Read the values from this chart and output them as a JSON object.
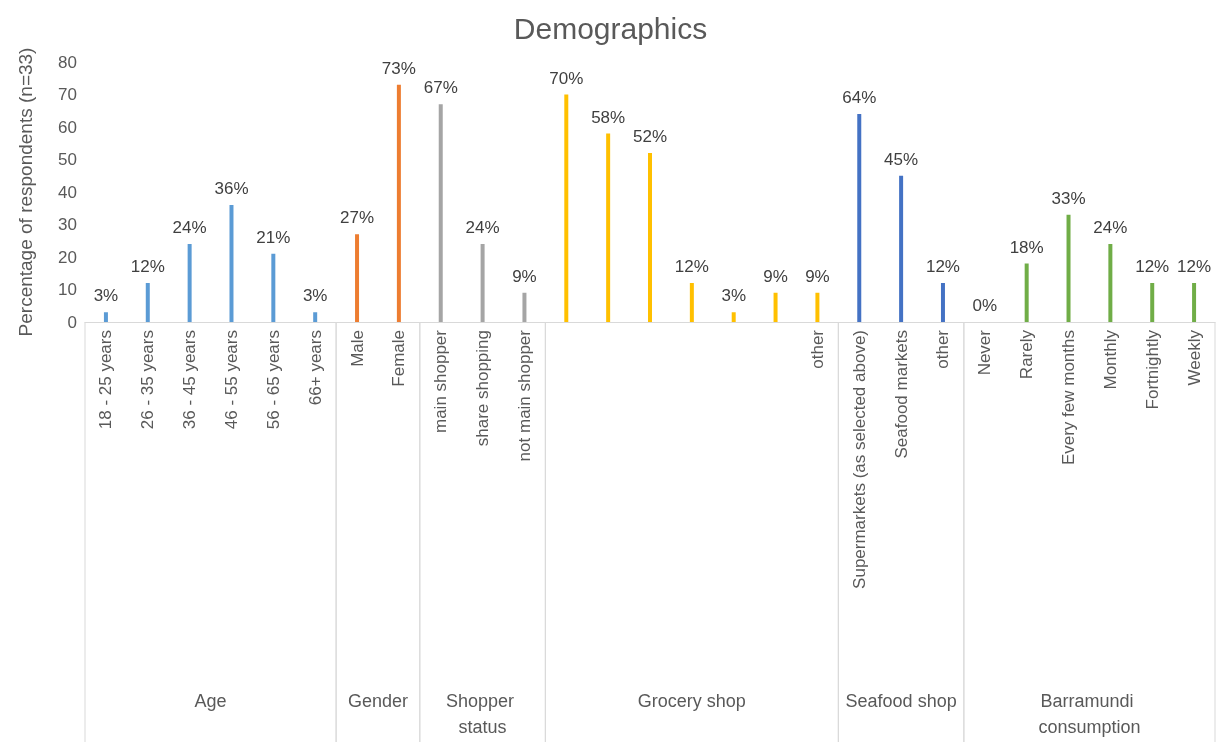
{
  "chart_data": {
    "type": "bar",
    "title": "Demographics",
    "ylabel": "Percentage of respondents (n=33)",
    "categories": [
      "18 - 25 years",
      "26 - 35 years",
      "36 - 45 years",
      "46 - 55 years",
      "56 - 65 years",
      "66+ years",
      "Male",
      "Female",
      "main shopper",
      "share shopping",
      "not main shopper",
      null,
      null,
      null,
      null,
      null,
      null,
      "other",
      "Supermarkets (as selected above)",
      "Seafood markets",
      "other",
      "Never",
      "Rarely",
      "Every few months",
      "Monthly",
      "Fortnightly",
      "Weekly"
    ],
    "series": [
      {
        "color": "#5b9bd5",
        "values": [
          3,
          12,
          24,
          36,
          21,
          3,
          null,
          null,
          null,
          null,
          null,
          null,
          null,
          null,
          null,
          null,
          null,
          null,
          null,
          null,
          null,
          null,
          null,
          null,
          null,
          null,
          null
        ],
        "value_labels": [
          "3%",
          "12%",
          "24%",
          "36%",
          "21%",
          "3%",
          null,
          null,
          null,
          null,
          null,
          null,
          null,
          null,
          null,
          null,
          null,
          null,
          null,
          null,
          null,
          null,
          null,
          null,
          null,
          null,
          null
        ]
      },
      {
        "color": "#ed7d31",
        "values": [
          null,
          null,
          null,
          null,
          null,
          null,
          27,
          73,
          null,
          null,
          null,
          null,
          null,
          null,
          null,
          null,
          null,
          null,
          null,
          null,
          null,
          null,
          null,
          null,
          null,
          null,
          null
        ],
        "value_labels": [
          null,
          null,
          null,
          null,
          null,
          null,
          "27%",
          "73%",
          null,
          null,
          null,
          null,
          null,
          null,
          null,
          null,
          null,
          null,
          null,
          null,
          null,
          null,
          null,
          null,
          null,
          null,
          null
        ]
      },
      {
        "color": "#a5a5a5",
        "values": [
          null,
          null,
          null,
          null,
          null,
          null,
          null,
          null,
          67,
          24,
          9,
          null,
          null,
          null,
          null,
          null,
          null,
          null,
          null,
          null,
          null,
          null,
          null,
          null,
          null,
          null,
          null
        ],
        "value_labels": [
          null,
          null,
          null,
          null,
          null,
          null,
          null,
          null,
          "67%",
          "24%",
          "9%",
          null,
          null,
          null,
          null,
          null,
          null,
          null,
          null,
          null,
          null,
          null,
          null,
          null,
          null,
          null,
          null
        ]
      },
      {
        "color": "#ffc000",
        "values": [
          null,
          null,
          null,
          null,
          null,
          null,
          null,
          null,
          null,
          null,
          null,
          70,
          58,
          52,
          12,
          3,
          9,
          9,
          null,
          null,
          null,
          null,
          null,
          null,
          null,
          null,
          null
        ],
        "value_labels": [
          null,
          null,
          null,
          null,
          null,
          null,
          null,
          null,
          null,
          null,
          null,
          "70%",
          "58%",
          "52%",
          "12%",
          "3%",
          "9%",
          "9%",
          null,
          null,
          null,
          null,
          null,
          null,
          null,
          null,
          null
        ]
      },
      {
        "color": "#4472c4",
        "values": [
          null,
          null,
          null,
          null,
          null,
          null,
          null,
          null,
          null,
          null,
          null,
          null,
          null,
          null,
          null,
          null,
          null,
          null,
          64,
          45,
          12,
          null,
          null,
          null,
          null,
          null,
          null
        ],
        "value_labels": [
          null,
          null,
          null,
          null,
          null,
          null,
          null,
          null,
          null,
          null,
          null,
          null,
          null,
          null,
          null,
          null,
          null,
          null,
          "64%",
          "45%",
          "12%",
          null,
          null,
          null,
          null,
          null,
          null
        ]
      },
      {
        "color": "#70ad47",
        "values": [
          null,
          null,
          null,
          null,
          null,
          null,
          null,
          null,
          null,
          null,
          null,
          null,
          null,
          null,
          null,
          null,
          null,
          null,
          null,
          null,
          null,
          0,
          18,
          33,
          24,
          12,
          12
        ],
        "value_labels": [
          null,
          null,
          null,
          null,
          null,
          null,
          null,
          null,
          null,
          null,
          null,
          null,
          null,
          null,
          null,
          null,
          null,
          null,
          null,
          null,
          null,
          "0%",
          "18%",
          "33%",
          "24%",
          "12%",
          "12%"
        ]
      }
    ],
    "annotations": [
      "Age",
      "Gender",
      "Shopper status",
      "Grocery shop",
      "Seafood shop",
      "Barramundi consumption"
    ],
    "ylim": [
      0,
      80
    ],
    "yticks": [
      0,
      10,
      20,
      30,
      40,
      50,
      60,
      70,
      80
    ],
    "grid": false
  }
}
